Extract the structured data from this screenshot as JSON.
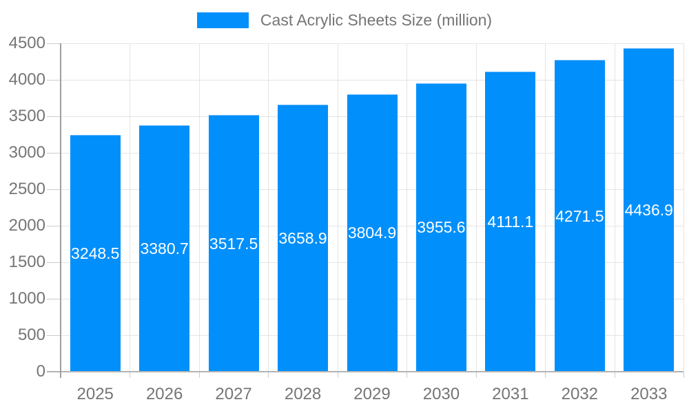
{
  "legend": {
    "title": "Cast Acrylic Sheets Size (million)"
  },
  "chart_data": {
    "type": "bar",
    "title": "Cast Acrylic Sheets Size (million)",
    "series_name": "Cast Acrylic Sheets Size (million)",
    "categories": [
      "2025",
      "2026",
      "2027",
      "2028",
      "2029",
      "2030",
      "2031",
      "2032",
      "2033"
    ],
    "values": [
      3248.5,
      3380.7,
      3517.5,
      3658.9,
      3804.9,
      3955.6,
      4111.1,
      4271.5,
      4436.9
    ],
    "xlabel": "",
    "ylabel": "",
    "ylim": [
      0,
      4500
    ],
    "yticks": [
      0,
      500,
      1000,
      1500,
      2000,
      2500,
      3000,
      3500,
      4000,
      4500
    ],
    "grid": true,
    "legend_position": "top",
    "data_labels": "inside-center",
    "colors": {
      "bar": "#008FFB",
      "bar_edge": "#69b9f9",
      "grid_line": "#e4e4e4",
      "axis_line": "#9e9e9e",
      "axis_line_bottom": "#b3b3b3",
      "tick": "#cccccc",
      "axis_label": "#757575",
      "bar_label": "#ffffff"
    }
  }
}
